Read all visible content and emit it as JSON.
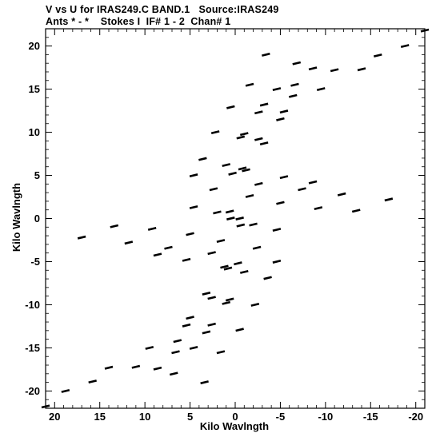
{
  "header": {
    "line1": "V vs U for IRAS249.C BAND.1   Source:IRAS249",
    "line2": "Ants * - *    Stokes I  IF# 1 - 2  Chan# 1"
  },
  "chart_data": {
    "type": "scatter",
    "title": "V vs U for IRAS249.C BAND.1   Source:IRAS249",
    "subtitle": "Ants * - *    Stokes I  IF# 1 - 2  Chan# 1",
    "xlabel": "Kilo Wavlngth",
    "ylabel": "Kilo Wavlngth",
    "xlim": [
      21,
      -21
    ],
    "ylim": [
      -22,
      22
    ],
    "x_inverted": true,
    "xticks": [
      20,
      15,
      10,
      5,
      0,
      -5,
      -10,
      -15,
      -20
    ],
    "yticks": [
      20,
      15,
      10,
      5,
      0,
      -5,
      -10,
      -15,
      -20
    ],
    "xtick_labels": [
      "20",
      "15",
      "10",
      "5",
      "0",
      "-5",
      "-10",
      "-15",
      "-20"
    ],
    "ytick_labels": [
      "20",
      "15",
      "10",
      "5",
      "0",
      "-5",
      "-10",
      "-15",
      "-20"
    ],
    "grid": false,
    "color": "#000000",
    "series": [
      {
        "values": [
          {
            "x": -21.0,
            "y": 21.8
          },
          {
            "x": -15.8,
            "y": 18.9
          },
          {
            "x": -11.0,
            "y": 17.2
          },
          {
            "x": -6.6,
            "y": 15.5
          },
          {
            "x": -3.2,
            "y": 13.2
          },
          {
            "x": -1.0,
            "y": 9.8
          },
          {
            "x": 0.3,
            "y": 5.2
          },
          {
            "x": 0.6,
            "y": 0.8
          },
          {
            "x": -18.8,
            "y": 20.0
          },
          {
            "x": -14.0,
            "y": 17.3
          },
          {
            "x": -9.5,
            "y": 15.0
          },
          {
            "x": -5.4,
            "y": 12.4
          },
          {
            "x": -2.6,
            "y": 9.2
          },
          {
            "x": -0.8,
            "y": 5.8
          },
          {
            "x": -3.4,
            "y": 19.0
          },
          {
            "x": -6.8,
            "y": 18.0
          },
          {
            "x": -8.6,
            "y": 17.4
          },
          {
            "x": -1.6,
            "y": 15.5
          },
          {
            "x": -4.6,
            "y": 15.0
          },
          {
            "x": -6.4,
            "y": 14.2
          },
          {
            "x": 0.5,
            "y": 12.9
          },
          {
            "x": -2.6,
            "y": 12.3
          },
          {
            "x": -5.0,
            "y": 11.5
          },
          {
            "x": 2.2,
            "y": 10.0
          },
          {
            "x": -0.6,
            "y": 9.4
          },
          {
            "x": -3.2,
            "y": 8.7
          },
          {
            "x": 3.6,
            "y": 6.9
          },
          {
            "x": 1.0,
            "y": 6.2
          },
          {
            "x": -1.2,
            "y": 5.6
          },
          {
            "x": -5.4,
            "y": 4.8
          },
          {
            "x": -8.6,
            "y": 4.2
          },
          {
            "x": 2.4,
            "y": 3.4
          },
          {
            "x": -1.6,
            "y": 2.6
          },
          {
            "x": -5.0,
            "y": 1.8
          },
          {
            "x": -9.2,
            "y": 1.2
          },
          {
            "x": -13.4,
            "y": 0.9
          },
          {
            "x": -17.0,
            "y": 2.2
          },
          {
            "x": -11.8,
            "y": 2.8
          },
          {
            "x": -7.4,
            "y": 3.4
          },
          {
            "x": -2.6,
            "y": 4.0
          },
          {
            "x": 4.6,
            "y": 5.0
          },
          {
            "x": 0.5,
            "y": 0.0
          },
          {
            "x": -2.0,
            "y": -0.7
          },
          {
            "x": -4.6,
            "y": -1.3
          },
          {
            "x": 21.0,
            "y": -21.8
          },
          {
            "x": 15.8,
            "y": -18.9
          },
          {
            "x": 11.0,
            "y": -17.2
          },
          {
            "x": 6.6,
            "y": -15.5
          },
          {
            "x": 3.2,
            "y": -13.2
          },
          {
            "x": 1.0,
            "y": -9.8
          },
          {
            "x": -0.3,
            "y": -5.2
          },
          {
            "x": -0.6,
            "y": -0.8
          },
          {
            "x": 18.8,
            "y": -20.0
          },
          {
            "x": 14.0,
            "y": -17.3
          },
          {
            "x": 9.5,
            "y": -15.0
          },
          {
            "x": 5.4,
            "y": -12.4
          },
          {
            "x": 2.6,
            "y": -9.2
          },
          {
            "x": 0.8,
            "y": -5.8
          },
          {
            "x": 3.4,
            "y": -19.0
          },
          {
            "x": 6.8,
            "y": -18.0
          },
          {
            "x": 8.6,
            "y": -17.4
          },
          {
            "x": 1.6,
            "y": -15.5
          },
          {
            "x": 4.6,
            "y": -15.0
          },
          {
            "x": 6.4,
            "y": -14.2
          },
          {
            "x": -0.5,
            "y": -12.9
          },
          {
            "x": 2.6,
            "y": -12.3
          },
          {
            "x": 5.0,
            "y": -11.5
          },
          {
            "x": -2.2,
            "y": -10.0
          },
          {
            "x": 0.6,
            "y": -9.4
          },
          {
            "x": 3.2,
            "y": -8.7
          },
          {
            "x": -3.6,
            "y": -6.9
          },
          {
            "x": -1.0,
            "y": -6.2
          },
          {
            "x": 1.2,
            "y": -5.6
          },
          {
            "x": 5.4,
            "y": -4.8
          },
          {
            "x": 8.6,
            "y": -4.2
          },
          {
            "x": -2.4,
            "y": -3.4
          },
          {
            "x": 1.6,
            "y": -2.6
          },
          {
            "x": 5.0,
            "y": -1.8
          },
          {
            "x": 9.2,
            "y": -1.2
          },
          {
            "x": 13.4,
            "y": -0.9
          },
          {
            "x": 17.0,
            "y": -2.2
          },
          {
            "x": 11.8,
            "y": -2.8
          },
          {
            "x": 7.4,
            "y": -3.4
          },
          {
            "x": 2.6,
            "y": -4.0
          },
          {
            "x": -4.6,
            "y": -5.0
          },
          {
            "x": -0.5,
            "y": 0.0
          },
          {
            "x": 2.0,
            "y": 0.7
          },
          {
            "x": 4.6,
            "y": 1.3
          }
        ]
      }
    ]
  }
}
